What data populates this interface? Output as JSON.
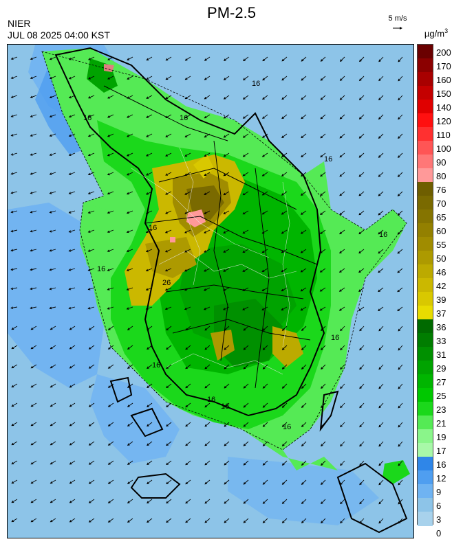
{
  "header": {
    "title": "PM-2.5",
    "agency": "NIER",
    "timestamp": "JUL 08 2025 04:00 KST",
    "wind_reference": "5 m/s",
    "unit_base": "µg/m",
    "unit_exp": "3"
  },
  "colorbar": {
    "labels": [
      "200",
      "170",
      "160",
      "150",
      "140",
      "120",
      "110",
      "100",
      "90",
      "80",
      "76",
      "70",
      "65",
      "60",
      "55",
      "50",
      "46",
      "42",
      "39",
      "37",
      "36",
      "33",
      "31",
      "29",
      "27",
      "25",
      "23",
      "21",
      "19",
      "17",
      "16",
      "12",
      "9",
      "6",
      "3",
      "0"
    ],
    "colors": [
      "#6a0000",
      "#8b0000",
      "#a80000",
      "#c40000",
      "#e00000",
      "#ff1010",
      "#ff3030",
      "#ff5555",
      "#ff7777",
      "#ff9999",
      "#6e5e00",
      "#7a6a00",
      "#857400",
      "#938000",
      "#a08c00",
      "#ad9a00",
      "#bcaa00",
      "#cbb800",
      "#d9c800",
      "#e8dc00",
      "#006a00",
      "#007d00",
      "#009000",
      "#00a300",
      "#00b500",
      "#00c800",
      "#1bd81b",
      "#55ea55",
      "#8af58a",
      "#a8f8a8",
      "#2f86e8",
      "#4f9ef0",
      "#6fb3f2",
      "#8dc4e8",
      "#a8d2ec"
    ]
  },
  "map": {
    "contour_labels": [
      "16",
      "16",
      "16",
      "16",
      "16",
      "16",
      "16",
      "16",
      "16",
      "16",
      "26",
      "16",
      "16"
    ]
  }
}
